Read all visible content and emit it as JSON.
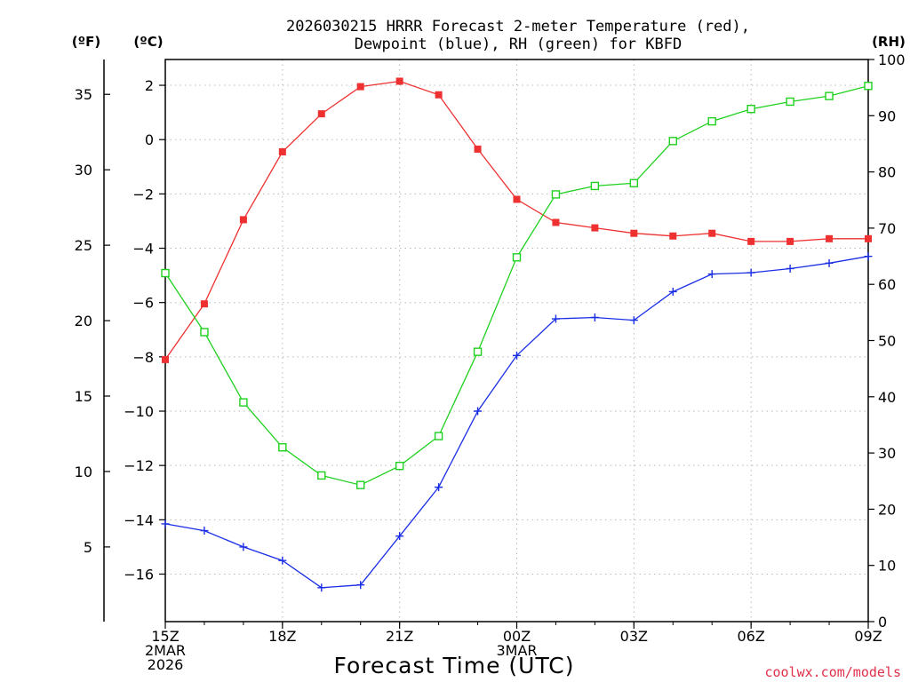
{
  "chart_data": {
    "type": "line",
    "title_line1": "2026030215 HRRR Forecast 2-meter Temperature (red),",
    "title_line2": "Dewpoint (blue), RH (green) for KBFD",
    "xlabel": "Forecast Time (UTC)",
    "credit": "coolwx.com/models",
    "unit_labels": {
      "fahrenheit": "(ºF)",
      "celsius": "(ºC)",
      "rh": "(RH)"
    },
    "x_ticks": [
      {
        "hour": 0,
        "lines": [
          "15Z",
          "2MAR",
          "2026"
        ]
      },
      {
        "hour": 3,
        "lines": [
          "18Z"
        ]
      },
      {
        "hour": 6,
        "lines": [
          "21Z"
        ]
      },
      {
        "hour": 9,
        "lines": [
          "00Z",
          "3MAR"
        ]
      },
      {
        "hour": 12,
        "lines": [
          "03Z"
        ]
      },
      {
        "hour": 15,
        "lines": [
          "06Z"
        ]
      },
      {
        "hour": 18,
        "lines": [
          "09Z"
        ]
      }
    ],
    "x_range": [
      0,
      18
    ],
    "celsius_range": [
      -17.75,
      2.95
    ],
    "celsius_ticks": [
      2,
      0,
      -2,
      -4,
      -6,
      -8,
      -10,
      -12,
      -14,
      -16
    ],
    "celsius_tick_labels": [
      "2",
      "0",
      "−2",
      "−4",
      "−6",
      "−8",
      "−10",
      "−12",
      "−14",
      "−16"
    ],
    "fahrenheit_ticks": [
      35,
      30,
      25,
      20,
      15,
      10,
      5
    ],
    "rh_range": [
      0,
      100
    ],
    "rh_ticks": [
      100,
      90,
      80,
      70,
      60,
      50,
      40,
      30,
      20,
      10,
      0
    ],
    "grid": true,
    "series": [
      {
        "name": "Temperature (red)",
        "axis": "celsius",
        "color": "#ee3030",
        "marker": "filled-square",
        "x": [
          0,
          1,
          2,
          3,
          4,
          5,
          6,
          7,
          8,
          9,
          10,
          11,
          12,
          13,
          14,
          15,
          16,
          17,
          18
        ],
        "values": [
          -8.1,
          -6.05,
          -2.95,
          -0.45,
          0.95,
          1.95,
          2.15,
          1.65,
          -0.35,
          -2.2,
          -3.05,
          -3.25,
          -3.45,
          -3.55,
          -3.45,
          -3.75,
          -3.75,
          -3.65,
          -3.65
        ]
      },
      {
        "name": "Dewpoint (blue)",
        "axis": "celsius",
        "color": "#1a2ee6",
        "marker": "plus",
        "x": [
          0,
          1,
          2,
          3,
          4,
          5,
          6,
          7,
          8,
          9,
          10,
          11,
          12,
          13,
          14,
          15,
          16,
          17,
          18
        ],
        "values": [
          -14.15,
          -14.4,
          -15.0,
          -15.5,
          -16.5,
          -16.4,
          -14.6,
          -12.8,
          -10.0,
          -7.95,
          -6.6,
          -6.55,
          -6.65,
          -5.6,
          -4.95,
          -4.9,
          -4.75,
          -4.55,
          -4.3
        ]
      },
      {
        "name": "RH (green)",
        "axis": "rh",
        "color": "#1fd11f",
        "marker": "open-square",
        "x": [
          0,
          1,
          2,
          3,
          4,
          5,
          6,
          7,
          8,
          9,
          10,
          11,
          12,
          13,
          14,
          15,
          16,
          17,
          18
        ],
        "values": [
          62,
          51.5,
          39,
          31,
          26,
          24.3,
          27.7,
          33,
          48,
          64.8,
          76,
          77.5,
          78,
          85.5,
          89,
          91.2,
          92.5,
          93.5,
          95.3
        ]
      }
    ]
  }
}
